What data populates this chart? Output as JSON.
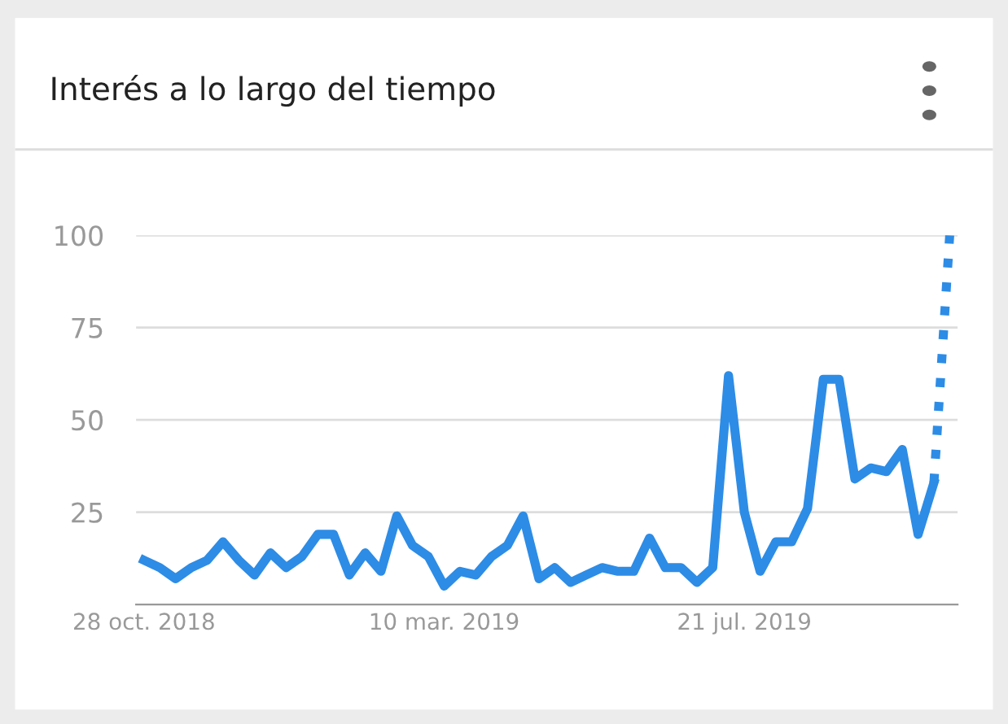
{
  "chart_data": {
    "type": "line",
    "title": "Interés a lo largo del tiempo",
    "categories": [
      "28 oct. 2018",
      null,
      null,
      null,
      null,
      null,
      null,
      null,
      null,
      null,
      null,
      null,
      null,
      null,
      null,
      null,
      null,
      null,
      null,
      "10 mar. 2019",
      null,
      null,
      null,
      null,
      null,
      null,
      null,
      null,
      null,
      null,
      null,
      null,
      null,
      null,
      null,
      null,
      null,
      null,
      "21 jul. 2019",
      null,
      null,
      null,
      null,
      null,
      null,
      null,
      null,
      null,
      null,
      null,
      null,
      null
    ],
    "series": [
      {
        "color": "#2d8ce6",
        "line_style": "solid",
        "values": [
          12,
          10,
          7,
          10,
          12,
          17,
          12,
          8,
          14,
          10,
          13,
          19,
          19,
          8,
          14,
          9,
          24,
          16,
          13,
          5,
          9,
          8,
          13,
          16,
          24,
          7,
          10,
          6,
          8,
          10,
          9,
          9,
          18,
          10,
          10,
          6,
          10,
          62,
          25,
          9,
          17,
          17,
          26,
          61,
          61,
          34,
          37,
          36,
          42,
          19,
          33,
          null
        ]
      },
      {
        "color": "#2d8ce6",
        "line_style": "dotted",
        "values": [
          null,
          null,
          null,
          null,
          null,
          null,
          null,
          null,
          null,
          null,
          null,
          null,
          null,
          null,
          null,
          null,
          null,
          null,
          null,
          null,
          null,
          null,
          null,
          null,
          null,
          null,
          null,
          null,
          null,
          null,
          null,
          null,
          null,
          null,
          null,
          null,
          null,
          null,
          null,
          null,
          null,
          null,
          null,
          null,
          null,
          null,
          null,
          null,
          null,
          null,
          33,
          100
        ]
      }
    ],
    "ylim": [
      0,
      100
    ],
    "yticks": [
      25,
      50,
      75,
      100
    ],
    "grid": "y",
    "marker": "none"
  }
}
